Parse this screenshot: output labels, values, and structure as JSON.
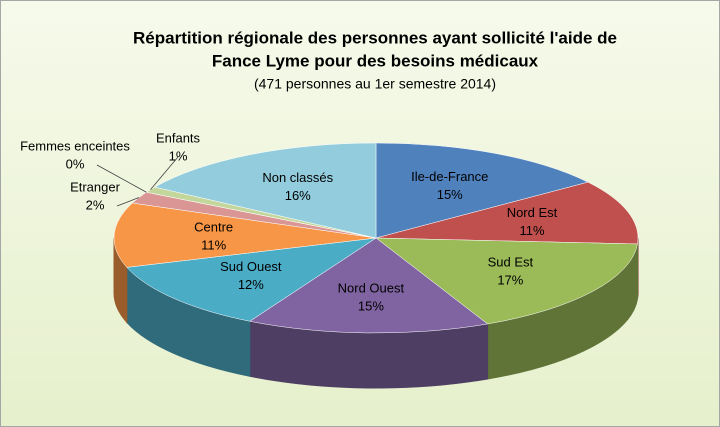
{
  "chart_data": {
    "type": "pie3d",
    "title": [
      "Répartition régionale des personnes ayant sollicité l'aide de",
      "Fance Lyme pour des besoins médicaux"
    ],
    "subtitle": "(471 personnes au 1er semestre 2014)",
    "categories": [
      "Ile-de-France",
      "Nord Est",
      "Sud Est",
      "Nord Ouest",
      "Sud Ouest",
      "Centre",
      "Etranger",
      "Femmes enceintes",
      "Enfants",
      "Non classés"
    ],
    "values": [
      15,
      11,
      17,
      15,
      12,
      11,
      2,
      0,
      1,
      16
    ],
    "value_labels": [
      "15%",
      "11%",
      "17%",
      "15%",
      "12%",
      "11%",
      "2%",
      "0%",
      "1%",
      "16%"
    ],
    "colors": [
      "#4f81bd",
      "#c0504d",
      "#9bbb59",
      "#8064a2",
      "#4bacc6",
      "#f79646",
      "#d99694",
      "#b3a2c7",
      "#c3d69b",
      "#93cddd"
    ]
  }
}
